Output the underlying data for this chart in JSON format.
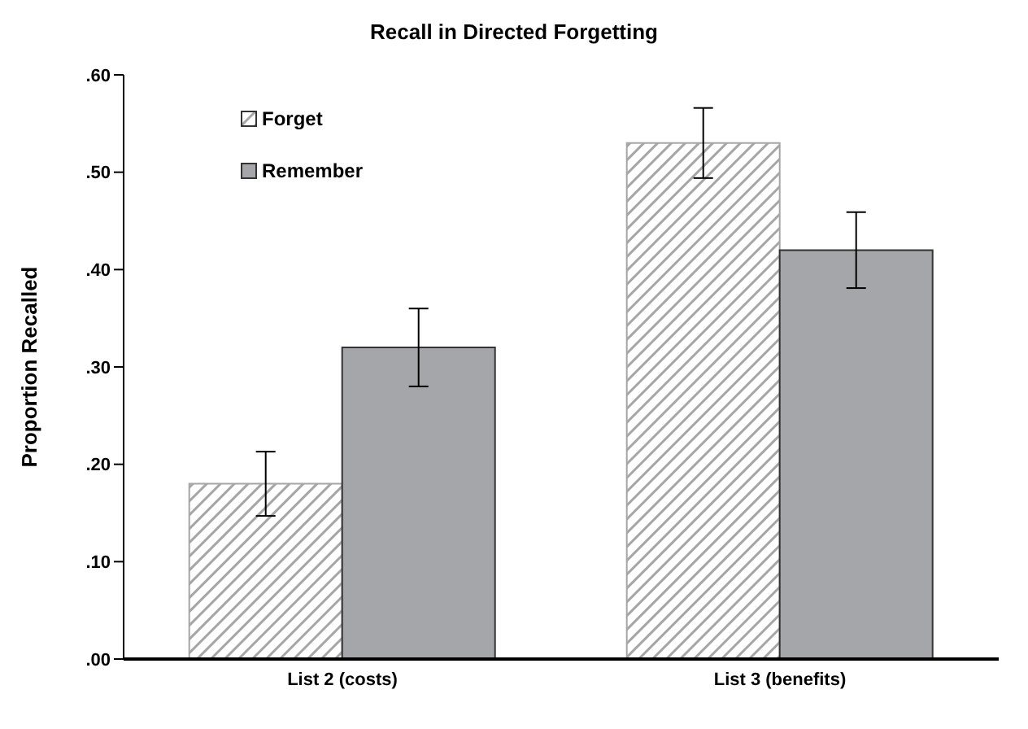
{
  "chart_data": {
    "type": "bar",
    "title": "Recall in Directed Forgetting",
    "ylabel": "Proportion Recalled",
    "categories": [
      "List 2 (costs)",
      "List 3 (benefits)"
    ],
    "series": [
      {
        "name": "Forget",
        "color": "#a6a6a6",
        "values": [
          0.18,
          0.53
        ],
        "errors": [
          0.033,
          0.036
        ]
      },
      {
        "name": "Remember",
        "color": "#a5a6aa",
        "values": [
          0.32,
          0.42
        ],
        "errors": [
          0.04,
          0.039
        ]
      }
    ],
    "ylim": [
      0,
      0.6
    ],
    "yticks": [
      {
        "value": 0,
        "label": ".00"
      },
      {
        "value": 0.1,
        "label": ".10"
      },
      {
        "value": 0.2,
        "label": ".20"
      },
      {
        "value": 0.3,
        "label": ".30"
      },
      {
        "value": 0.4,
        "label": ".40"
      },
      {
        "value": 0.5,
        "label": ".50"
      },
      {
        "value": 0.6,
        "label": ".60"
      }
    ],
    "grid": false,
    "legend": "top left"
  }
}
